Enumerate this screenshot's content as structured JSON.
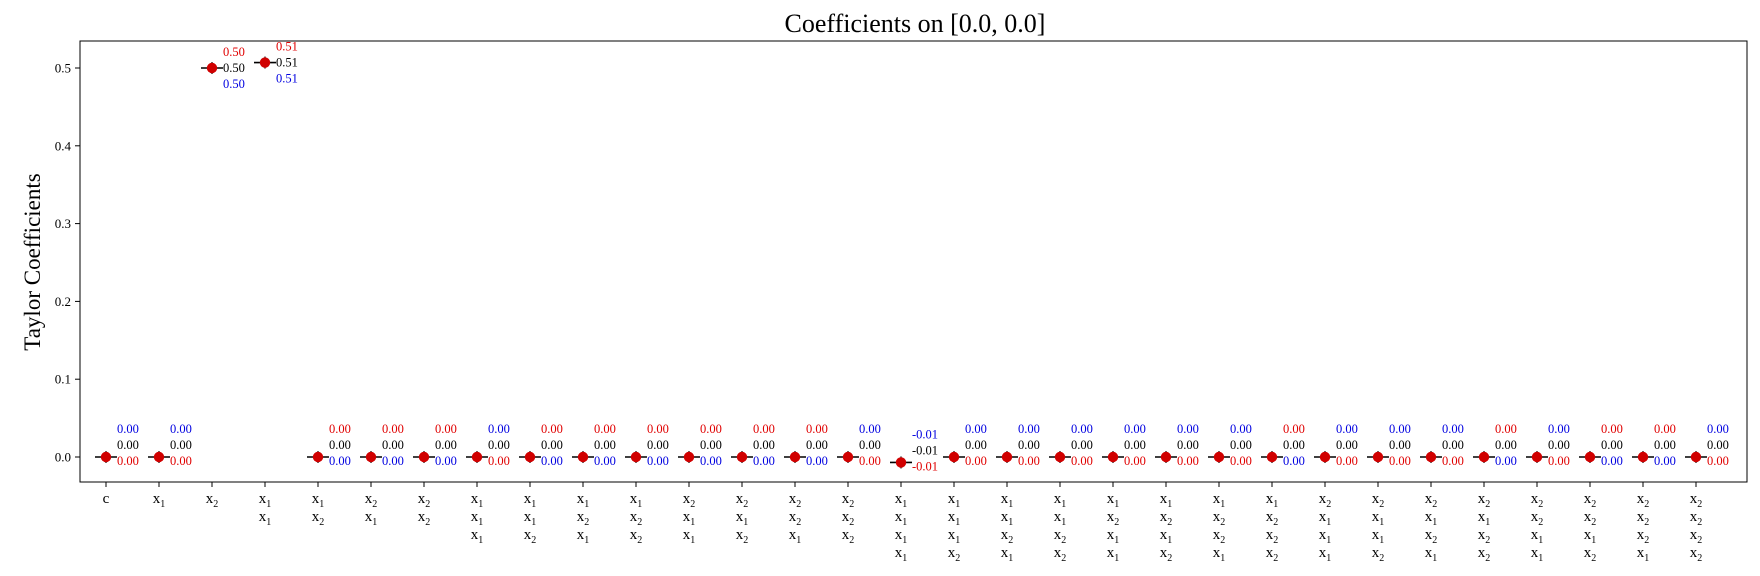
{
  "chart_data": {
    "type": "scatter",
    "title": "Coefficients on [0.0, 0.0]",
    "xlabel": "",
    "ylabel": "Taylor Coefficients",
    "ylim": [
      -0.032,
      0.535
    ],
    "yticks": [
      0.0,
      0.1,
      0.2,
      0.3,
      0.4,
      0.5
    ],
    "ytick_labels": [
      "0.0",
      "0.1",
      "0.2",
      "0.3",
      "0.4",
      "0.5"
    ],
    "grid": false,
    "legend": "none",
    "colors": {
      "point": "#d00000",
      "errorbar": "#000000",
      "upper": "#e00000",
      "mean": "#000000",
      "lower": "#0000e0"
    },
    "categories": [
      [
        "c"
      ],
      [
        "x1"
      ],
      [
        "x2"
      ],
      [
        "x1",
        "x1"
      ],
      [
        "x1",
        "x2"
      ],
      [
        "x2",
        "x1"
      ],
      [
        "x2",
        "x2"
      ],
      [
        "x1",
        "x1",
        "x1"
      ],
      [
        "x1",
        "x1",
        "x2"
      ],
      [
        "x1",
        "x2",
        "x1"
      ],
      [
        "x1",
        "x2",
        "x2"
      ],
      [
        "x2",
        "x1",
        "x1"
      ],
      [
        "x2",
        "x1",
        "x2"
      ],
      [
        "x2",
        "x2",
        "x1"
      ],
      [
        "x2",
        "x2",
        "x2"
      ],
      [
        "x1",
        "x1",
        "x1",
        "x1"
      ],
      [
        "x1",
        "x1",
        "x1",
        "x2"
      ],
      [
        "x1",
        "x1",
        "x2",
        "x1"
      ],
      [
        "x1",
        "x1",
        "x2",
        "x2"
      ],
      [
        "x1",
        "x2",
        "x1",
        "x1"
      ],
      [
        "x1",
        "x2",
        "x1",
        "x2"
      ],
      [
        "x1",
        "x2",
        "x2",
        "x1"
      ],
      [
        "x1",
        "x2",
        "x2",
        "x2"
      ],
      [
        "x2",
        "x1",
        "x1",
        "x1"
      ],
      [
        "x2",
        "x1",
        "x1",
        "x2"
      ],
      [
        "x2",
        "x1",
        "x2",
        "x1"
      ],
      [
        "x2",
        "x1",
        "x2",
        "x2"
      ],
      [
        "x2",
        "x2",
        "x1",
        "x1"
      ],
      [
        "x2",
        "x2",
        "x1",
        "x2"
      ],
      [
        "x2",
        "x2",
        "x2",
        "x1"
      ],
      [
        "x2",
        "x2",
        "x2",
        "x2"
      ]
    ],
    "values": [
      0.0,
      0.0,
      0.5,
      0.507,
      0.0,
      0.0,
      0.0,
      0.0,
      0.0,
      0.0,
      0.0,
      0.0,
      0.0,
      0.0,
      0.0,
      -0.007,
      0.0,
      0.0,
      0.0,
      0.0,
      0.0,
      0.0,
      0.0,
      0.0,
      0.0,
      0.0,
      0.0,
      0.0,
      0.0,
      0.0,
      0.0
    ],
    "labels": [
      {
        "upper": "0.00",
        "mean": "0.00",
        "lower": "0.00",
        "upper_color": "blue",
        "lower_color": "red"
      },
      {
        "upper": "0.00",
        "mean": "0.00",
        "lower": "0.00",
        "upper_color": "blue",
        "lower_color": "red"
      },
      {
        "upper": "0.50",
        "mean": "0.50",
        "lower": "0.50",
        "upper_color": "red",
        "lower_color": "blue"
      },
      {
        "upper": "0.51",
        "mean": "0.51",
        "lower": "0.51",
        "upper_color": "red",
        "lower_color": "blue"
      },
      {
        "upper": "0.00",
        "mean": "0.00",
        "lower": "0.00",
        "upper_color": "red",
        "lower_color": "blue"
      },
      {
        "upper": "0.00",
        "mean": "0.00",
        "lower": "0.00",
        "upper_color": "red",
        "lower_color": "blue"
      },
      {
        "upper": "0.00",
        "mean": "0.00",
        "lower": "0.00",
        "upper_color": "red",
        "lower_color": "blue"
      },
      {
        "upper": "0.00",
        "mean": "0.00",
        "lower": "0.00",
        "upper_color": "blue",
        "lower_color": "red"
      },
      {
        "upper": "0.00",
        "mean": "0.00",
        "lower": "0.00",
        "upper_color": "red",
        "lower_color": "blue"
      },
      {
        "upper": "0.00",
        "mean": "0.00",
        "lower": "0.00",
        "upper_color": "red",
        "lower_color": "blue"
      },
      {
        "upper": "0.00",
        "mean": "0.00",
        "lower": "0.00",
        "upper_color": "red",
        "lower_color": "blue"
      },
      {
        "upper": "0.00",
        "mean": "0.00",
        "lower": "0.00",
        "upper_color": "red",
        "lower_color": "blue"
      },
      {
        "upper": "0.00",
        "mean": "0.00",
        "lower": "0.00",
        "upper_color": "red",
        "lower_color": "blue"
      },
      {
        "upper": "0.00",
        "mean": "0.00",
        "lower": "0.00",
        "upper_color": "red",
        "lower_color": "blue"
      },
      {
        "upper": "0.00",
        "mean": "0.00",
        "lower": "0.00",
        "upper_color": "blue",
        "lower_color": "red"
      },
      {
        "upper": "-0.01",
        "mean": "-0.01",
        "lower": "-0.01",
        "upper_color": "blue",
        "lower_color": "red"
      },
      {
        "upper": "0.00",
        "mean": "0.00",
        "lower": "0.00",
        "upper_color": "blue",
        "lower_color": "red"
      },
      {
        "upper": "0.00",
        "mean": "0.00",
        "lower": "0.00",
        "upper_color": "blue",
        "lower_color": "red"
      },
      {
        "upper": "0.00",
        "mean": "0.00",
        "lower": "0.00",
        "upper_color": "blue",
        "lower_color": "red"
      },
      {
        "upper": "0.00",
        "mean": "0.00",
        "lower": "0.00",
        "upper_color": "blue",
        "lower_color": "red"
      },
      {
        "upper": "0.00",
        "mean": "0.00",
        "lower": "0.00",
        "upper_color": "blue",
        "lower_color": "red"
      },
      {
        "upper": "0.00",
        "mean": "0.00",
        "lower": "0.00",
        "upper_color": "blue",
        "lower_color": "red"
      },
      {
        "upper": "0.00",
        "mean": "0.00",
        "lower": "0.00",
        "upper_color": "red",
        "lower_color": "blue"
      },
      {
        "upper": "0.00",
        "mean": "0.00",
        "lower": "0.00",
        "upper_color": "blue",
        "lower_color": "red"
      },
      {
        "upper": "0.00",
        "mean": "0.00",
        "lower": "0.00",
        "upper_color": "blue",
        "lower_color": "red"
      },
      {
        "upper": "0.00",
        "mean": "0.00",
        "lower": "0.00",
        "upper_color": "blue",
        "lower_color": "red"
      },
      {
        "upper": "0.00",
        "mean": "0.00",
        "lower": "0.00",
        "upper_color": "red",
        "lower_color": "blue"
      },
      {
        "upper": "0.00",
        "mean": "0.00",
        "lower": "0.00",
        "upper_color": "blue",
        "lower_color": "red"
      },
      {
        "upper": "0.00",
        "mean": "0.00",
        "lower": "0.00",
        "upper_color": "red",
        "lower_color": "blue"
      },
      {
        "upper": "0.00",
        "mean": "0.00",
        "lower": "0.00",
        "upper_color": "red",
        "lower_color": "blue"
      },
      {
        "upper": "0.00",
        "mean": "0.00",
        "lower": "0.00",
        "upper_color": "blue",
        "lower_color": "red"
      }
    ]
  }
}
